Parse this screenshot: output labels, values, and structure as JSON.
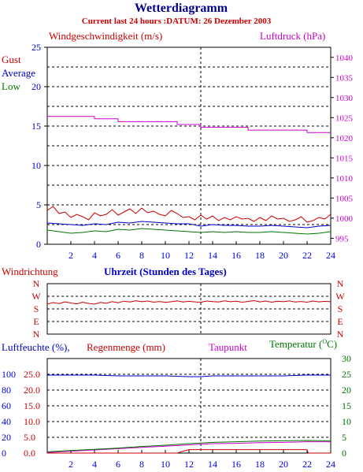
{
  "header": {
    "title": "Wetterdiagramm",
    "subtitle": "Current last 24 hours :DATUM: 26 Dezember 2003"
  },
  "colors": {
    "gust": "#cc0000",
    "average": "#0000cc",
    "low": "#007700",
    "pressure": "#cc00cc",
    "frame": "#000000",
    "bg": "#ffffff"
  },
  "chart_data": [
    {
      "type": "line",
      "title": "Windgeschwindigkeit (m/s)",
      "ylabel": "Windgeschwindigkeit (m/s)",
      "y2label": "Luftdruck (hPa)",
      "xlim": [
        0,
        24
      ],
      "ylim": [
        0,
        25
      ],
      "y2lim": [
        993.5,
        1042.5
      ],
      "x_ticks": [
        2,
        4,
        6,
        8,
        10,
        12,
        14,
        16,
        18,
        20,
        22,
        24
      ],
      "y_ticks": [
        0,
        5,
        10,
        15,
        20,
        25
      ],
      "y2_ticks": [
        995,
        1000,
        1005,
        1010,
        1015,
        1020,
        1025,
        1030,
        1035,
        1040
      ],
      "grid": true,
      "legend": [
        "Gust",
        "Average",
        "Low"
      ],
      "series": [
        {
          "name": "Gust",
          "axis": "left",
          "x": [
            0,
            0.5,
            1,
            1.5,
            2,
            2.5,
            3,
            3.5,
            4,
            4.5,
            5,
            5.5,
            6,
            6.5,
            7,
            7.5,
            8,
            8.5,
            9,
            9.5,
            10,
            10.5,
            11,
            11.5,
            12,
            12.5,
            13,
            13.5,
            14,
            14.5,
            15,
            15.5,
            16,
            16.5,
            17,
            17.5,
            18,
            18.5,
            19,
            19.5,
            20,
            20.5,
            21,
            21.5,
            22,
            22.5,
            23,
            23.5,
            24
          ],
          "values": [
            4.3,
            4.8,
            3.9,
            4.1,
            3.4,
            3.8,
            3.5,
            3.1,
            4.0,
            3.6,
            3.8,
            4.4,
            3.7,
            4.1,
            4.5,
            3.9,
            4.6,
            4.0,
            4.2,
            3.8,
            3.6,
            4.3,
            3.9,
            3.4,
            3.5,
            3.1,
            3.7,
            3.2,
            3.6,
            3.0,
            3.4,
            3.1,
            3.5,
            3.2,
            3.3,
            2.9,
            3.4,
            3.0,
            3.6,
            3.2,
            3.3,
            2.9,
            3.1,
            3.5,
            2.8,
            3.0,
            3.4,
            3.2,
            3.8
          ]
        },
        {
          "name": "Average",
          "axis": "left",
          "x": [
            0,
            1,
            2,
            3,
            4,
            5,
            6,
            7,
            8,
            9,
            10,
            11,
            12,
            13,
            14,
            15,
            16,
            17,
            18,
            19,
            20,
            21,
            22,
            23,
            24
          ],
          "values": [
            2.7,
            2.6,
            2.5,
            2.4,
            2.6,
            2.5,
            2.8,
            2.7,
            2.9,
            2.8,
            2.7,
            2.6,
            2.6,
            2.3,
            2.5,
            2.4,
            2.4,
            2.3,
            2.3,
            2.4,
            2.3,
            2.2,
            2.1,
            2.3,
            2.4
          ]
        },
        {
          "name": "Low",
          "axis": "left",
          "x": [
            0,
            1,
            2,
            3,
            4,
            5,
            6,
            7,
            8,
            9,
            10,
            11,
            12,
            13,
            14,
            15,
            16,
            17,
            18,
            19,
            20,
            21,
            22,
            23,
            24
          ],
          "values": [
            1.8,
            1.6,
            1.4,
            1.5,
            1.7,
            1.6,
            1.9,
            1.8,
            2.0,
            1.9,
            1.8,
            1.7,
            1.6,
            1.5,
            1.6,
            1.5,
            1.6,
            1.5,
            1.5,
            1.6,
            1.5,
            1.4,
            1.3,
            1.4,
            1.6
          ]
        },
        {
          "name": "Luftdruck",
          "axis": "right",
          "x": [
            0,
            4,
            4,
            6,
            6,
            11,
            11,
            13,
            13,
            17,
            17,
            22,
            22,
            24
          ],
          "values": [
            1025.3,
            1025.3,
            1024.7,
            1024.7,
            1024.0,
            1024.0,
            1023.3,
            1023.3,
            1022.6,
            1022.6,
            1021.9,
            1021.9,
            1021.3,
            1021.3
          ]
        }
      ]
    },
    {
      "type": "line",
      "title": "Windrichtung",
      "ylabel": "Windrichtung",
      "xlabel": "Uhrzeit (Stunden des Tages)",
      "xlim": [
        0,
        24
      ],
      "y_ticks": [
        "N",
        "W",
        "S",
        "E",
        "N"
      ],
      "grid": true,
      "series": [
        {
          "name": "Windrichtung",
          "x": [
            0,
            0.5,
            1,
            1.5,
            2,
            2.5,
            3,
            3.5,
            4,
            4.5,
            5,
            5.5,
            6,
            6.5,
            7,
            7.5,
            8,
            8.5,
            9,
            9.5,
            10,
            10.5,
            11,
            11.5,
            12,
            12.5,
            13,
            13.5,
            14,
            14.5,
            15,
            15.5,
            16,
            16.5,
            17,
            17.5,
            18,
            18.5,
            19,
            19.5,
            20,
            20.5,
            21,
            21.5,
            22,
            22.5,
            23,
            23.5,
            24
          ],
          "values": [
            215,
            225,
            218,
            230,
            222,
            216,
            228,
            219,
            214,
            226,
            220,
            232,
            224,
            235,
            229,
            238,
            231,
            236,
            228,
            233,
            226,
            231,
            237,
            229,
            234,
            230,
            227,
            236,
            232,
            229,
            238,
            231,
            235,
            228,
            233,
            239,
            230,
            236,
            228,
            234,
            231,
            237,
            229,
            233,
            228,
            236,
            230,
            234,
            231
          ]
        }
      ]
    },
    {
      "type": "line",
      "title": "Luftfeuchte (%), Regenmenge (mm), Taupunkt, Temperatur (°C)",
      "xlim": [
        0,
        24
      ],
      "y_ticks_humidity": [
        0,
        20,
        40,
        60,
        80,
        100
      ],
      "y_ticks_rain": [
        0.0,
        5.0,
        10.0,
        15.0,
        20.0,
        25.0
      ],
      "y_ticks_temp": [
        0,
        5,
        10,
        15,
        20,
        25,
        30
      ],
      "ylim_humidity": [
        0,
        120
      ],
      "ylim_rain": [
        0,
        30
      ],
      "ylim_temp": [
        0,
        30
      ],
      "x_ticks": [
        2,
        4,
        6,
        8,
        10,
        12,
        14,
        16,
        18,
        20,
        22,
        24
      ],
      "grid": true,
      "legend": [
        "Luftfeuchte (%)",
        "Regenmenge (mm)",
        "Taupunkt",
        "Temperatur (°C)"
      ],
      "series": [
        {
          "name": "Luftfeuchte (%)",
          "axis": "humidity",
          "x": [
            0,
            2,
            4,
            6,
            8,
            10,
            12,
            13,
            14,
            16,
            18,
            20,
            22,
            24
          ],
          "values": [
            99,
            99,
            99,
            98,
            98,
            98,
            97,
            97,
            98,
            98,
            98,
            98,
            99,
            99
          ]
        },
        {
          "name": "Regenmenge (mm)",
          "axis": "rain",
          "x": [
            0,
            11,
            11.5,
            12,
            22,
            22.1,
            24
          ],
          "values": [
            0,
            0,
            0.6,
            1.1,
            1.1,
            0,
            0
          ]
        },
        {
          "name": "Taupunkt",
          "axis": "temp",
          "x": [
            0,
            2,
            4,
            6,
            8,
            10,
            12,
            14,
            16,
            18,
            20,
            22,
            24
          ],
          "values": [
            0.2,
            0.6,
            1.0,
            1.4,
            1.8,
            2.2,
            2.6,
            3.0,
            3.1,
            3.3,
            3.4,
            3.6,
            3.6
          ]
        },
        {
          "name": "Temperatur (°C)",
          "axis": "temp",
          "x": [
            0,
            2,
            4,
            6,
            8,
            10,
            12,
            14,
            16,
            18,
            20,
            22,
            24
          ],
          "values": [
            0.4,
            0.8,
            1.2,
            1.6,
            2.1,
            2.5,
            3.0,
            3.4,
            3.6,
            3.8,
            3.9,
            4.0,
            3.9
          ]
        }
      ]
    }
  ],
  "labels": {
    "wind_title": "Windgeschwindigkeit (m/s)",
    "pressure_title": "Luftdruck (hPa)",
    "gust": "Gust",
    "average": "Average",
    "low": "Low",
    "dir_title": "Windrichtung",
    "time_title": "Uhrzeit (Stunden des Tages)",
    "humidity_title": "Luftfeuchte (%),",
    "rain_title": "Regenmenge (mm)",
    "dew_title": "Taupunkt",
    "temp_title": "Temperatur (",
    "temp_unit": "C)",
    "temp_deg": "O"
  }
}
